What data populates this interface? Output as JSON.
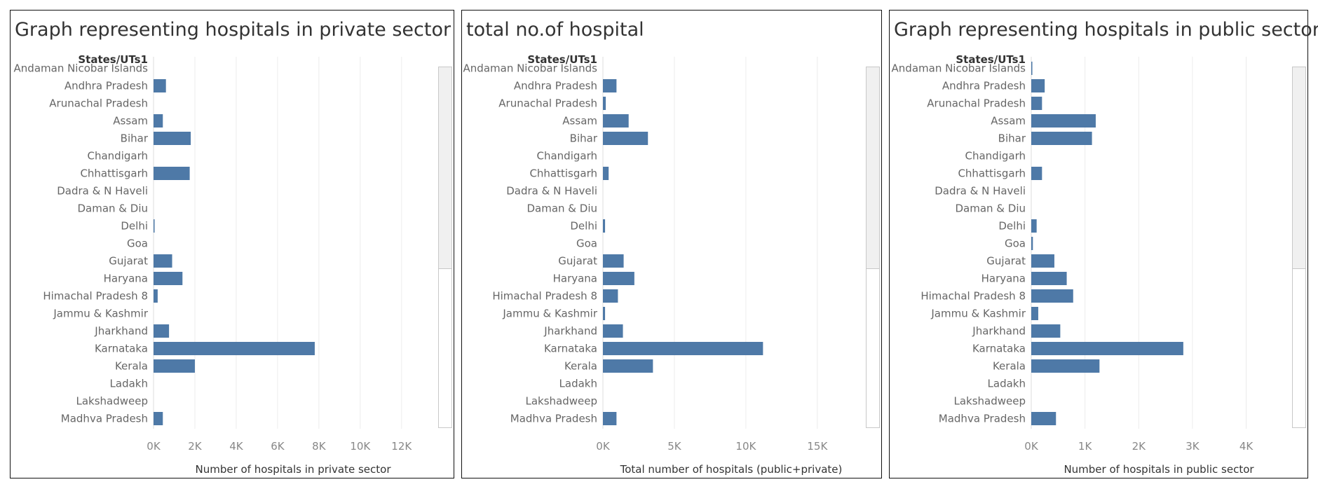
{
  "chart_data": [
    {
      "type": "bar",
      "orientation": "horizontal",
      "title": "Graph representing hospitals in private sector",
      "row_header": "States/UTs1",
      "xlabel": "Number of hospitals in private sector",
      "xlim": [
        0,
        13500
      ],
      "ticks": [
        0,
        2000,
        4000,
        6000,
        8000,
        10000,
        12000
      ],
      "tick_labels": [
        "0K",
        "2K",
        "4K",
        "6K",
        "8K",
        "10K",
        "12K"
      ],
      "grid": true,
      "categories": [
        "Andaman Nicobar Islands",
        "Andhra Pradesh",
        "Arunachal Pradesh",
        "Assam",
        "Bihar",
        "Chandigarh",
        "Chhattisgarh",
        "Dadra & N Haveli",
        "Daman & Diu",
        "Delhi",
        "Goa",
        "Gujarat",
        "Haryana",
        "Himachal Pradesh 8",
        "Jammu & Kashmir",
        "Jharkhand",
        "Karnataka",
        "Kerala",
        "Ladakh",
        "Lakshadweep",
        "Madhva Pradesh"
      ],
      "values": [
        0,
        600,
        0,
        450,
        1800,
        0,
        1750,
        0,
        0,
        30,
        0,
        900,
        1400,
        200,
        0,
        750,
        7800,
        2000,
        0,
        0,
        450
      ]
    },
    {
      "type": "bar",
      "orientation": "horizontal",
      "title": "total no.of hospital",
      "row_header": "States/UTs1",
      "xlabel": "Total number of hospitals (public+private)",
      "xlim": [
        0,
        18000
      ],
      "ticks": [
        0,
        5000,
        10000,
        15000
      ],
      "tick_labels": [
        "0K",
        "5K",
        "10K",
        "15K"
      ],
      "grid": true,
      "categories": [
        "Andaman Nicobar Islands",
        "Andhra Pradesh",
        "Arunachal Pradesh",
        "Assam",
        "Bihar",
        "Chandigarh",
        "Chhattisgarh",
        "Dadra & N Haveli",
        "Daman & Diu",
        "Delhi",
        "Goa",
        "Gujarat",
        "Haryana",
        "Himachal Pradesh 8",
        "Jammu & Kashmir",
        "Jharkhand",
        "Karnataka",
        "Kerala",
        "Ladakh",
        "Lakshadweep",
        "Madhva Pradesh"
      ],
      "values": [
        0,
        950,
        200,
        1800,
        3150,
        0,
        400,
        0,
        0,
        150,
        0,
        1450,
        2200,
        1050,
        150,
        1400,
        11200,
        3500,
        0,
        0,
        950
      ]
    },
    {
      "type": "bar",
      "orientation": "horizontal",
      "title": "Graph representing hospitals in public sector",
      "row_header": "States/UTs1",
      "xlabel": "Number of hospitals in public sector",
      "xlim": [
        0,
        4750
      ],
      "ticks": [
        0,
        1000,
        2000,
        3000,
        4000
      ],
      "tick_labels": [
        "0K",
        "1K",
        "2K",
        "3K",
        "4K"
      ],
      "grid": true,
      "categories": [
        "Andaman Nicobar Islands",
        "Andhra Pradesh",
        "Arunachal Pradesh",
        "Assam",
        "Bihar",
        "Chandigarh",
        "Chhattisgarh",
        "Dadra & N Haveli",
        "Daman & Diu",
        "Delhi",
        "Goa",
        "Gujarat",
        "Haryana",
        "Himachal Pradesh 8",
        "Jammu & Kashmir",
        "Jharkhand",
        "Karnataka",
        "Kerala",
        "Ladakh",
        "Lakshadweep",
        "Madhva Pradesh"
      ],
      "values": [
        20,
        250,
        200,
        1200,
        1130,
        0,
        200,
        0,
        0,
        100,
        30,
        430,
        660,
        780,
        130,
        540,
        2830,
        1270,
        0,
        0,
        460
      ]
    }
  ],
  "colors": {
    "bar": "#4e79a7",
    "grid": "#ececec",
    "frame": "#111111"
  },
  "scrollbar": {
    "thumb_fraction": 0.56
  }
}
